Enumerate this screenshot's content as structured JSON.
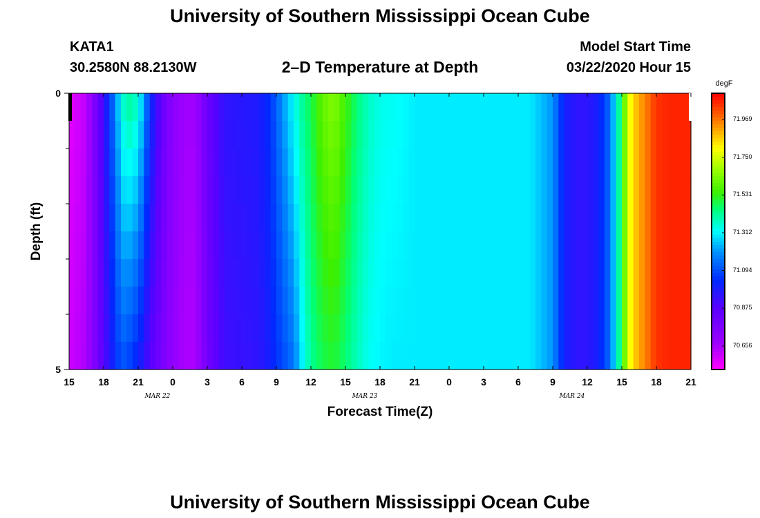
{
  "header": {
    "title": "University of Southern Mississippi Ocean Cube",
    "station": "KATA1",
    "location": "30.2580N 88.2130W",
    "plot_title": "2–D Temperature at Depth",
    "start_label": "Model Start Time",
    "start_value": "03/22/2020 Hour 15"
  },
  "footer": {
    "title": "University of Southern Mississippi Ocean Cube"
  },
  "chart_data": {
    "type": "heatmap",
    "title": "2–D Temperature at Depth",
    "xlabel": "Forecast Time(Z)",
    "ylabel": "Depth (ft)",
    "x_ticks": [
      "15",
      "18",
      "21",
      "0",
      "3",
      "6",
      "9",
      "12",
      "15",
      "18",
      "21",
      "0",
      "3",
      "6",
      "9",
      "12",
      "15",
      "18",
      "21"
    ],
    "x_date_labels": [
      "MAR 22",
      "MAR 23",
      "MAR 24"
    ],
    "y_ticks": [
      "0",
      "5"
    ],
    "ylim": [
      0,
      5
    ],
    "forecast_hours": [
      0,
      54
    ],
    "colorbar": {
      "unit": "degF",
      "ticks": [
        "71.969",
        "71.750",
        "71.531",
        "71.312",
        "71.094",
        "70.875",
        "70.656"
      ],
      "range": [
        70.52,
        72.12
      ]
    },
    "depths_ft": [
      0.25,
      0.75,
      1.25,
      1.75,
      2.25,
      2.75,
      3.25,
      3.75,
      4.25,
      4.75
    ],
    "hour_knots": [
      0,
      1.5,
      2.5,
      3.5,
      4.5,
      5,
      6,
      7,
      8,
      9,
      10,
      11,
      12,
      13.5,
      16.5,
      17.5,
      18.5,
      19.5,
      20.5,
      21,
      22,
      23,
      24,
      25,
      26,
      27,
      28,
      29,
      30,
      32,
      36,
      40,
      42,
      43,
      44,
      45,
      46,
      47,
      48,
      48.5,
      49,
      50,
      51,
      52,
      53,
      54
    ],
    "temp_at_surface": [
      70.56,
      70.62,
      70.82,
      71.05,
      71.33,
      71.43,
      71.38,
      71.05,
      70.85,
      70.72,
      70.67,
      70.67,
      70.82,
      70.95,
      70.98,
      71.05,
      71.2,
      71.33,
      71.45,
      71.48,
      71.6,
      71.65,
      71.55,
      71.45,
      71.38,
      71.34,
      71.33,
      71.32,
      71.3,
      71.3,
      71.3,
      71.3,
      71.2,
      71.0,
      70.95,
      70.95,
      71.0,
      71.15,
      71.5,
      71.75,
      71.85,
      71.95,
      72.05,
      72.07,
      72.07,
      72.07
    ],
    "temp_at_bottom": [
      70.6,
      70.65,
      70.8,
      70.95,
      71.1,
      71.08,
      71.0,
      70.88,
      70.78,
      70.7,
      70.65,
      70.65,
      70.8,
      70.92,
      70.95,
      71.0,
      71.08,
      71.15,
      71.35,
      71.42,
      71.48,
      71.5,
      71.45,
      71.38,
      71.33,
      71.31,
      71.3,
      71.3,
      71.3,
      71.3,
      71.3,
      71.3,
      71.2,
      71.0,
      70.95,
      70.95,
      71.0,
      71.15,
      71.5,
      71.75,
      71.85,
      71.95,
      72.05,
      72.07,
      72.07,
      72.07
    ]
  }
}
